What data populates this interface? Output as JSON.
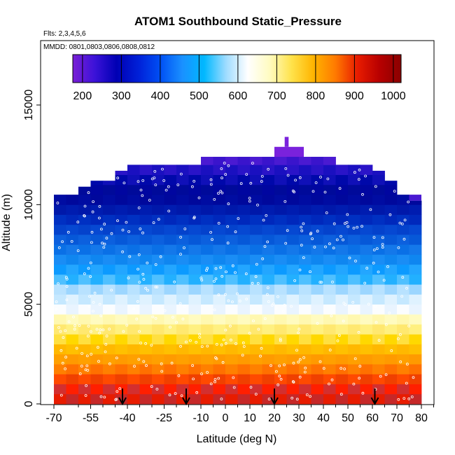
{
  "chart_data": {
    "type": "heatmap",
    "title": "ATOM1 Southbound Static_Pressure",
    "subtitle_flights": "Flts: 2,3,4,5,6",
    "subtitle_dates": "MMDD: 0801,0803,0806,0808,0812",
    "xlabel": "Latitude (deg N)",
    "ylabel": "Altitude (m)",
    "xlim": [
      -70,
      85
    ],
    "ylim": [
      0,
      17500
    ],
    "x_ticks": [
      -70,
      -55,
      -40,
      -25,
      -10,
      0,
      10,
      20,
      30,
      40,
      50,
      60,
      70,
      80
    ],
    "x_tick_labels": [
      "-70",
      "-55",
      "-40",
      "-25",
      "-10",
      "0",
      "10",
      "20",
      "30",
      "40",
      "50",
      "60",
      "70",
      "80"
    ],
    "x_minor_ticks": [
      -60,
      -50,
      -45,
      -35,
      -30,
      -20,
      -15,
      -5,
      5,
      15,
      25,
      35,
      45,
      55,
      65,
      75,
      85
    ],
    "y_ticks": [
      0,
      5000,
      10000,
      15000
    ],
    "y_tick_labels": [
      "0",
      "5000",
      "10000",
      "15000"
    ],
    "colorbar": {
      "min": 175,
      "max": 1020,
      "ticks": [
        200,
        300,
        400,
        500,
        600,
        700,
        800,
        900,
        1000
      ],
      "tick_labels": [
        "200",
        "300",
        "400",
        "500",
        "600",
        "700",
        "800",
        "900",
        "1000"
      ],
      "colors": [
        "#7a1fd6",
        "#3b12d8",
        "#0000b4",
        "#0020d8",
        "#0050f4",
        "#1a90ff",
        "#00b8ff",
        "#9fdcff",
        "#ffffff",
        "#fffbc0",
        "#ffe24a",
        "#ffb400",
        "#ff7a00",
        "#e81c00",
        "#b80000",
        "#8a0000"
      ],
      "scale": "linear",
      "level_colors": [
        [
          "#e81c00",
          "#c62828"
        ],
        [
          "#ff1f00",
          "#d32f2f"
        ],
        [
          "#ff4a00",
          "#f04000"
        ],
        [
          "#ff7000",
          "#ff8000"
        ],
        [
          "#ffa000",
          "#ff9a00"
        ],
        [
          "#ffc000",
          "#ffb800"
        ],
        [
          "#ffe040",
          "#ffd800"
        ],
        [
          "#fff080",
          "#ffe870"
        ],
        [
          "#fff8b0",
          "#fffbc0"
        ],
        [
          "#e9f4ff",
          "#fbfdff"
        ],
        [
          "#c5e8ff",
          "#dff2ff"
        ],
        [
          "#9cd6ff",
          "#b8e2ff"
        ],
        [
          "#4fc0ff",
          "#22b0ff"
        ],
        [
          "#23a6ff",
          "#0c9aff"
        ],
        [
          "#1a8df5",
          "#0f86f0"
        ],
        [
          "#1478ea",
          "#0a70e6"
        ],
        [
          "#0c60de",
          "#0658d8"
        ],
        [
          "#0648d2",
          "#0442cc"
        ],
        [
          "#0030c2",
          "#0028bc"
        ],
        [
          "#001cb0",
          "#0018aa"
        ],
        [
          "#000ca2",
          "#00089c"
        ],
        [
          "#0006a0",
          "#000a9a"
        ],
        [
          "#1010b8",
          "#0008aa"
        ],
        [
          "#2a14c8",
          "#1a10c0"
        ],
        [
          "#4a1ad2",
          "#3a14cc"
        ],
        [
          "#5c1ed6",
          "#4e1ad2"
        ],
        [
          "#6a1ed8",
          "#5e1ad4"
        ],
        [
          "#7a22dc",
          "#6e1eda"
        ]
      ]
    },
    "profile": {
      "latitudes": [
        -70,
        -65,
        -60,
        -55,
        -50,
        -45,
        -40,
        -35,
        -30,
        -25,
        -20,
        -15,
        -10,
        -5,
        0,
        5,
        10,
        15,
        20,
        25,
        30,
        35,
        40,
        45,
        50,
        55,
        60,
        65,
        70,
        75,
        80
      ],
      "max_altitude": [
        10500,
        10500,
        10900,
        11200,
        11200,
        11700,
        12000,
        12000,
        12000,
        12000,
        12000,
        12000,
        12400,
        12400,
        12400,
        12400,
        12400,
        12400,
        12400,
        12400,
        12400,
        12400,
        12400,
        12000,
        12000,
        12000,
        11700,
        11200,
        10500,
        10200,
        7000
      ],
      "peak": {
        "lat_range": [
          2,
          46
        ],
        "altitude": 12400
      },
      "top": {
        "lat_range": [
          20,
          32
        ],
        "altitude": 12900
      },
      "spike": {
        "lat": 25,
        "altitude": 13400
      }
    },
    "flight_markers": [
      -42,
      -16,
      20,
      61
    ],
    "annotation_points_note": ""
  }
}
